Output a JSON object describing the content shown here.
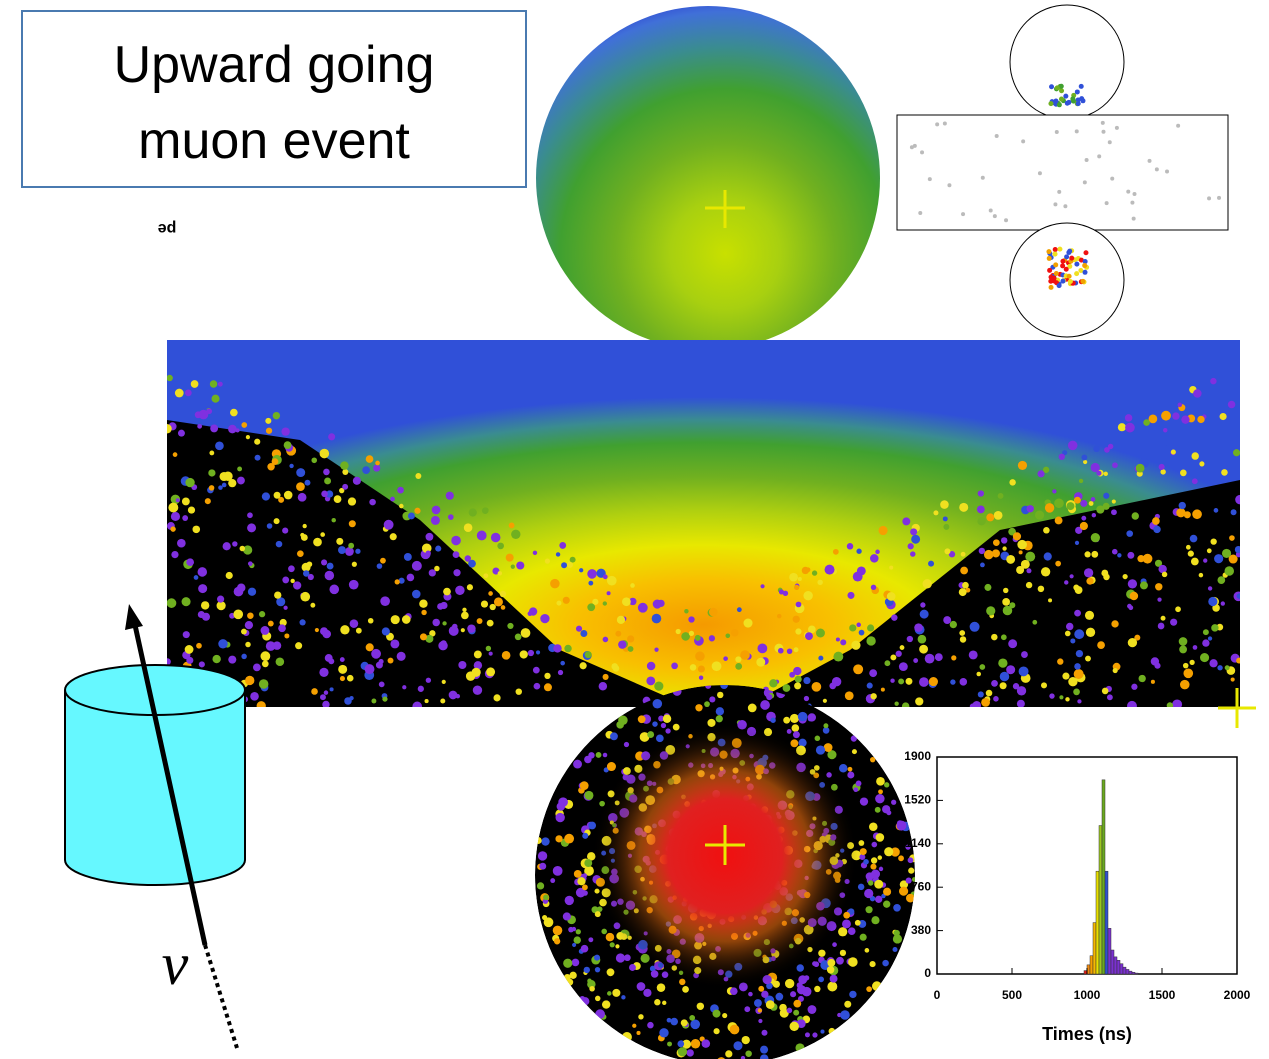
{
  "title_box": {
    "lines": [
      "Upward going",
      "muon event"
    ]
  },
  "mirrored_text": "pe",
  "neutrino_label": "ν",
  "chart_data": {
    "type": "histogram",
    "xlabel": "Times (ns)",
    "bins": [
      980,
      1000,
      1020,
      1040,
      1060,
      1080,
      1100,
      1120,
      1140,
      1160,
      1180,
      1200,
      1220,
      1240,
      1260,
      1280,
      1300,
      1320,
      1340
    ],
    "counts": [
      30,
      80,
      160,
      450,
      900,
      1300,
      1700,
      900,
      400,
      210,
      150,
      120,
      90,
      60,
      40,
      25,
      15,
      8
    ],
    "bar_colors": [
      "#e0201a",
      "#f08a10",
      "#f5a000",
      "#f5b800",
      "#e8e000",
      "#9cc820",
      "#6aa820",
      "#3050d0",
      "#7a30d0",
      "#7a30d0",
      "#7a30d0",
      "#7a30d0",
      "#7a30d0",
      "#7a30d0",
      "#7a30d0",
      "#7a30d0",
      "#7a30d0",
      "#7a30d0"
    ],
    "xlim": [
      0,
      2000
    ],
    "ylim": [
      0,
      1900
    ],
    "xticks": [
      0,
      500,
      1000,
      1500,
      2000
    ],
    "yticks": [
      0,
      380,
      760,
      1140,
      1520,
      1900
    ]
  }
}
